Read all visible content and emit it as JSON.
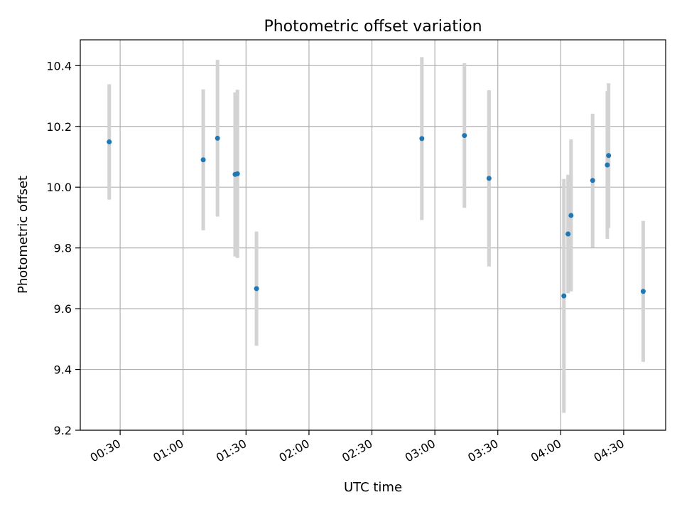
{
  "chart_data": {
    "type": "scatter",
    "title": "Photometric offset variation",
    "xlabel": "UTC time",
    "ylabel": "Photometric offset",
    "x_unit": "UTC time (HH:MM)",
    "xlim": [
      "00:11",
      "04:50"
    ],
    "ylim": [
      9.2,
      10.485
    ],
    "grid": true,
    "x_ticks": [
      "00:30",
      "01:00",
      "01:30",
      "02:00",
      "02:30",
      "03:00",
      "03:30",
      "04:00",
      "04:30"
    ],
    "y_ticks": [
      "9.2",
      "9.4",
      "9.6",
      "9.8",
      "10.0",
      "10.2",
      "10.4"
    ],
    "marker_color": "#1f77b4",
    "errorbar_color": "#d3d3d3",
    "points": [
      {
        "t": "00:24.8",
        "y": 10.149,
        "yerr": 0.19
      },
      {
        "t": "01:09.6",
        "y": 10.09,
        "yerr": 0.232
      },
      {
        "t": "01:16.4",
        "y": 10.161,
        "yerr": 0.258
      },
      {
        "t": "01:24.8",
        "y": 10.042,
        "yerr": 0.27
      },
      {
        "t": "01:25.9",
        "y": 10.044,
        "yerr": 0.277
      },
      {
        "t": "01:35.0",
        "y": 9.666,
        "yerr": 0.188
      },
      {
        "t": "02:53.8",
        "y": 10.16,
        "yerr": 0.268
      },
      {
        "t": "03:14.1",
        "y": 10.17,
        "yerr": 0.238
      },
      {
        "t": "03:25.8",
        "y": 10.029,
        "yerr": 0.29
      },
      {
        "t": "04:01.5",
        "y": 9.642,
        "yerr": 0.385
      },
      {
        "t": "04:03.5",
        "y": 9.846,
        "yerr": 0.195
      },
      {
        "t": "04:04.9",
        "y": 9.907,
        "yerr": 0.25
      },
      {
        "t": "04:15.2",
        "y": 10.022,
        "yerr": 0.22
      },
      {
        "t": "04:22.2",
        "y": 10.073,
        "yerr": 0.243
      },
      {
        "t": "04:22.8",
        "y": 10.104,
        "yerr": 0.238
      },
      {
        "t": "04:39.3",
        "y": 9.657,
        "yerr": 0.232
      }
    ]
  }
}
